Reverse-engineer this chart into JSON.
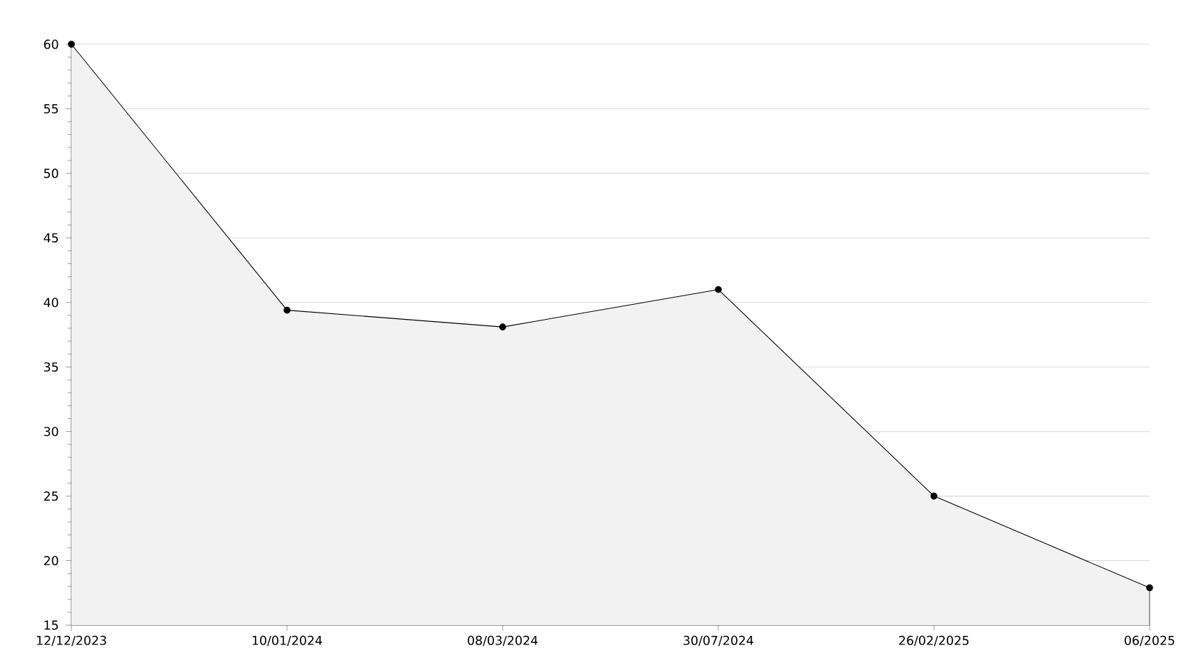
{
  "chart_data": {
    "type": "area",
    "categories": [
      "12/12/2023",
      "10/01/2024",
      "08/03/2024",
      "30/07/2024",
      "26/02/2025",
      "06/2025"
    ],
    "values": [
      60,
      39.4,
      38.1,
      41,
      25,
      17.9
    ],
    "color": "#000000",
    "ylim": [
      15,
      60
    ],
    "yticks": [
      15,
      20,
      25,
      30,
      35,
      40,
      45,
      50,
      55,
      60
    ],
    "grid": "y",
    "marker": "circle",
    "line_style": "solid"
  }
}
